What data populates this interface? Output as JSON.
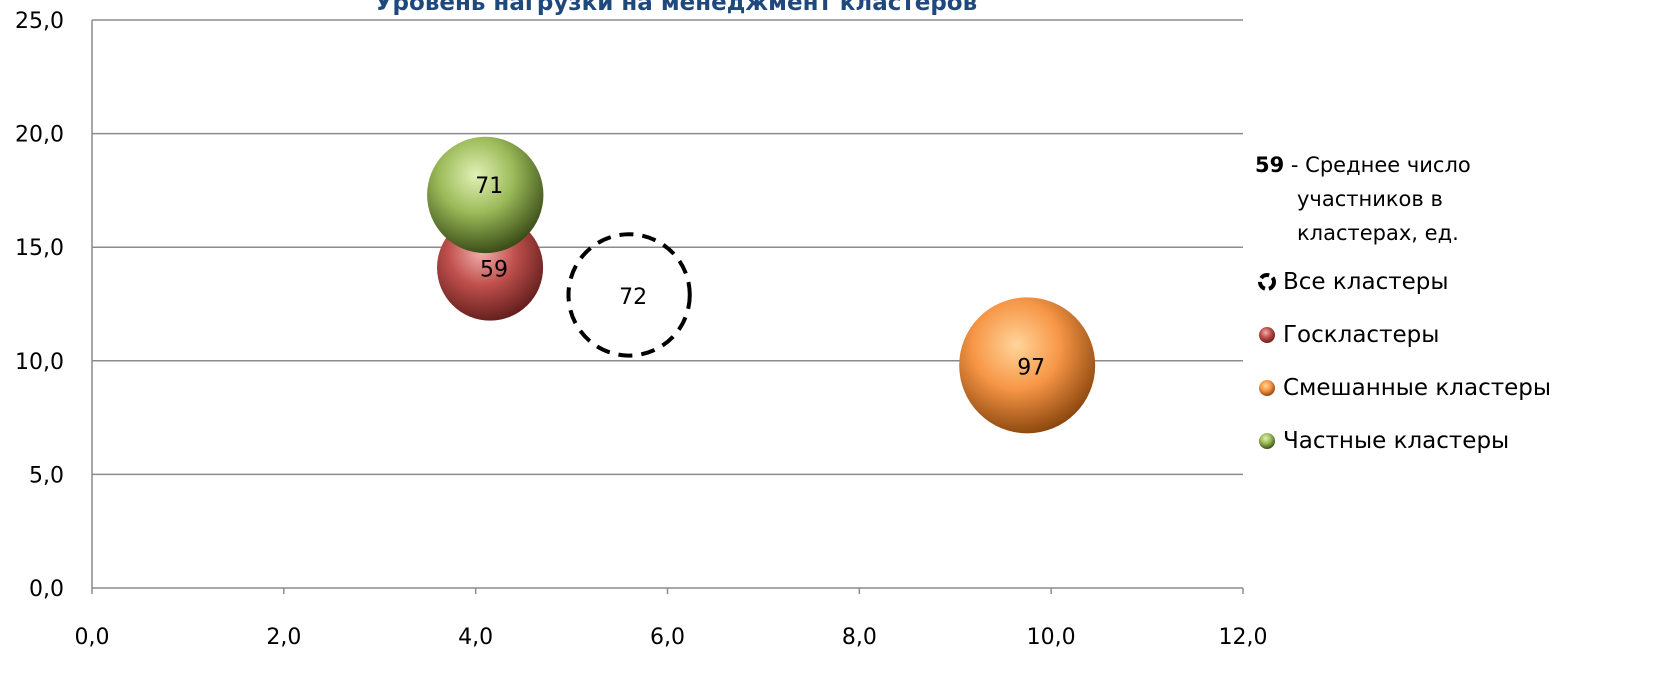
{
  "chart_data": {
    "type": "bubble",
    "title": "Уровень нагрузки на менеджмент кластеров",
    "xlim": [
      0,
      12
    ],
    "ylim": [
      0,
      25
    ],
    "x_ticks": [
      "0,0",
      "2,0",
      "4,0",
      "6,0",
      "8,0",
      "10,0",
      "12,0"
    ],
    "y_ticks": [
      "0,0",
      "5,0",
      "10,0",
      "15,0",
      "20,0",
      "25,0"
    ],
    "grid": "horizontal",
    "legend_position": "right",
    "legend_note": {
      "number": "59",
      "text_line1": " - Среднее число",
      "text_line2": "участников в",
      "text_line3": "кластерах, ед."
    },
    "series": [
      {
        "name": "Все кластеры",
        "x": 5.6,
        "y": 12.9,
        "size": 72,
        "label": "72",
        "style": "dashed-outline",
        "color": "#000000"
      },
      {
        "name": "Госкластеры",
        "x": 4.15,
        "y": 14.1,
        "size": 59,
        "label": "59",
        "style": "sphere",
        "color": "#c0504d"
      },
      {
        "name": "Смешанные кластеры",
        "x": 9.75,
        "y": 9.8,
        "size": 97,
        "label": "97",
        "style": "sphere",
        "color": "#f79646"
      },
      {
        "name": "Частные кластеры",
        "x": 4.1,
        "y": 17.3,
        "size": 71,
        "label": "71",
        "style": "sphere",
        "color": "#9bbb59"
      }
    ]
  }
}
